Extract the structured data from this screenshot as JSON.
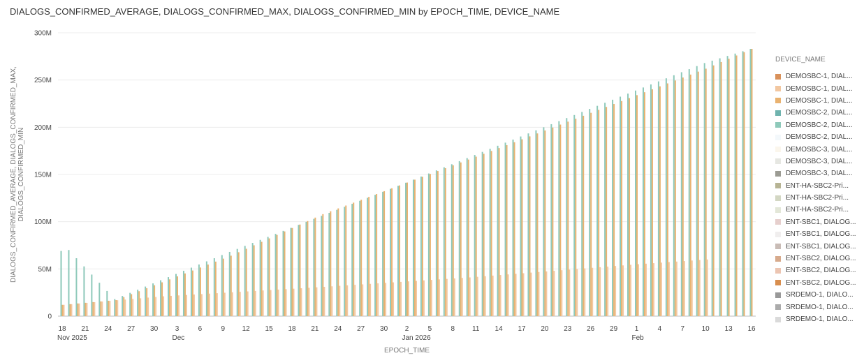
{
  "chart_data": {
    "type": "bar",
    "title": "DIALOGS_CONFIRMED_AVERAGE, DIALOGS_CONFIRMED_MAX, DIALOGS_CONFIRMED_MIN by EPOCH_TIME, DEVICE_NAME",
    "xlabel": "EPOCH_TIME",
    "ylabel_lines": [
      "DIALOGS_CONFIRMED_AVERAGE, DIALOGS_CONFIRMED_MAX,",
      "DIALOGS_CONFIRMED_MIN"
    ],
    "ylim": [
      0,
      300
    ],
    "y_ticks": [
      "0",
      "50M",
      "100M",
      "150M",
      "200M",
      "250M",
      "300M"
    ],
    "grid": true,
    "legend_position": "right",
    "x_ticks": [
      "18",
      "21",
      "24",
      "27",
      "30",
      "3",
      "6",
      "9",
      "12",
      "15",
      "18",
      "21",
      "24",
      "27",
      "30",
      "2",
      "5",
      "8",
      "11",
      "14",
      "17",
      "20",
      "23",
      "26",
      "29",
      "1",
      "4",
      "7",
      "10",
      "13",
      "16"
    ],
    "x_month_labels": [
      {
        "at": "18",
        "label": "Nov 2025"
      },
      {
        "at": "3",
        "label": "Dec"
      },
      {
        "at": "2",
        "label": "Jan 2026"
      },
      {
        "at": "1",
        "label": "Feb"
      }
    ],
    "start_date": "2025-11-18",
    "end_date": "2026-02-16",
    "series_summary": [
      {
        "name": "DEMOSBC-2, DIAL...",
        "role": "max (teal)",
        "values_points": [
          [
            "2025-11-18",
            69
          ],
          [
            "2025-11-19",
            70
          ],
          [
            "2025-11-25",
            18
          ],
          [
            "2025-12-10",
            68
          ],
          [
            "2026-01-01",
            138
          ],
          [
            "2026-01-20",
            200
          ],
          [
            "2026-02-10",
            268
          ],
          [
            "2026-02-16",
            283
          ]
        ]
      },
      {
        "name": "DEMOSBC-1, DIAL...",
        "role": "max (orange)",
        "values_points": [
          [
            "2025-11-18",
            12
          ],
          [
            "2025-11-25",
            17
          ],
          [
            "2025-12-10",
            64
          ],
          [
            "2025-12-22",
            108
          ],
          [
            "2026-01-15",
            181
          ],
          [
            "2026-02-10",
            262
          ],
          [
            "2026-02-16",
            283
          ]
        ]
      },
      {
        "name": "DEMOSBC-1, DIAL...",
        "role": "average (light orange)",
        "values_points": [
          [
            "2025-11-18",
            12
          ],
          [
            "2025-12-01",
            21
          ],
          [
            "2025-12-20",
            30
          ],
          [
            "2026-01-10",
            41
          ],
          [
            "2026-02-01",
            55
          ],
          [
            "2026-02-10",
            60
          ]
        ]
      }
    ]
  },
  "legend": {
    "title": "DEVICE_NAME",
    "items": [
      {
        "label": "DEMOSBC-1, DIAL...",
        "color": "#d9915a"
      },
      {
        "label": "DEMOSBC-1, DIAL...",
        "color": "#f2c7a0"
      },
      {
        "label": "DEMOSBC-1, DIAL...",
        "color": "#e9b270"
      },
      {
        "label": "DEMOSBC-2, DIAL...",
        "color": "#6fb3ae"
      },
      {
        "label": "DEMOSBC-2, DIAL...",
        "color": "#8ec9ba"
      },
      {
        "label": "DEMOSBC-2, DIAL...",
        "color": "#f3f8fb"
      },
      {
        "label": "DEMOSBC-3, DIAL...",
        "color": "#fbf6ec"
      },
      {
        "label": "DEMOSBC-3, DIAL...",
        "color": "#e6e7e2"
      },
      {
        "label": "DEMOSBC-3, DIAL...",
        "color": "#9b9b93"
      },
      {
        "label": "ENT-HA-SBC2-Pri...",
        "color": "#b7b494"
      },
      {
        "label": "ENT-HA-SBC2-Pri...",
        "color": "#d3d7c3"
      },
      {
        "label": "ENT-HA-SBC2-Pri...",
        "color": "#e3e7d8"
      },
      {
        "label": "ENT-SBC1, DIALOG...",
        "color": "#e6cfcd"
      },
      {
        "label": "ENT-SBC1, DIALOG...",
        "color": "#f0eeee"
      },
      {
        "label": "ENT-SBC1, DIALOG...",
        "color": "#c9bcb6"
      },
      {
        "label": "ENT-SBC2, DIALOG...",
        "color": "#d7aa8c"
      },
      {
        "label": "ENT-SBC2, DIALOG...",
        "color": "#ecc5b2"
      },
      {
        "label": "ENT-SBC2, DIALOG...",
        "color": "#d88e4e"
      },
      {
        "label": "SRDEMO-1, DIALO...",
        "color": "#999999"
      },
      {
        "label": "SRDEMO-1, DIALO...",
        "color": "#ababab"
      },
      {
        "label": "SRDEMO-1, DIALO...",
        "color": "#dadada"
      }
    ]
  }
}
